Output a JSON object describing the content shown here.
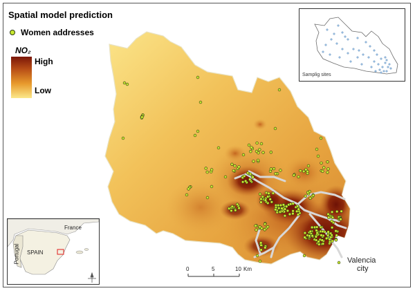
{
  "map": {
    "title": "Spatial model prediction",
    "layer": "NO₂ concentration surface"
  },
  "legend": {
    "women_label": "Women addresses",
    "no2_label": "NO₂",
    "high_label": "High",
    "low_label": "Low",
    "ramp_colors": [
      "#7a1608",
      "#b84e16",
      "#e89a2c",
      "#fbe88a"
    ],
    "point_color": "#c8e830"
  },
  "inset_sampling": {
    "label": "Samplig sites"
  },
  "inset_spain": {
    "countries": [
      "France",
      "Portugal",
      "SPAIN"
    ]
  },
  "city": {
    "name_line1": "Valencia",
    "name_line2": "city"
  },
  "scale_bar": {
    "ticks": [
      "0",
      "5",
      "10"
    ],
    "unit": "Km"
  }
}
